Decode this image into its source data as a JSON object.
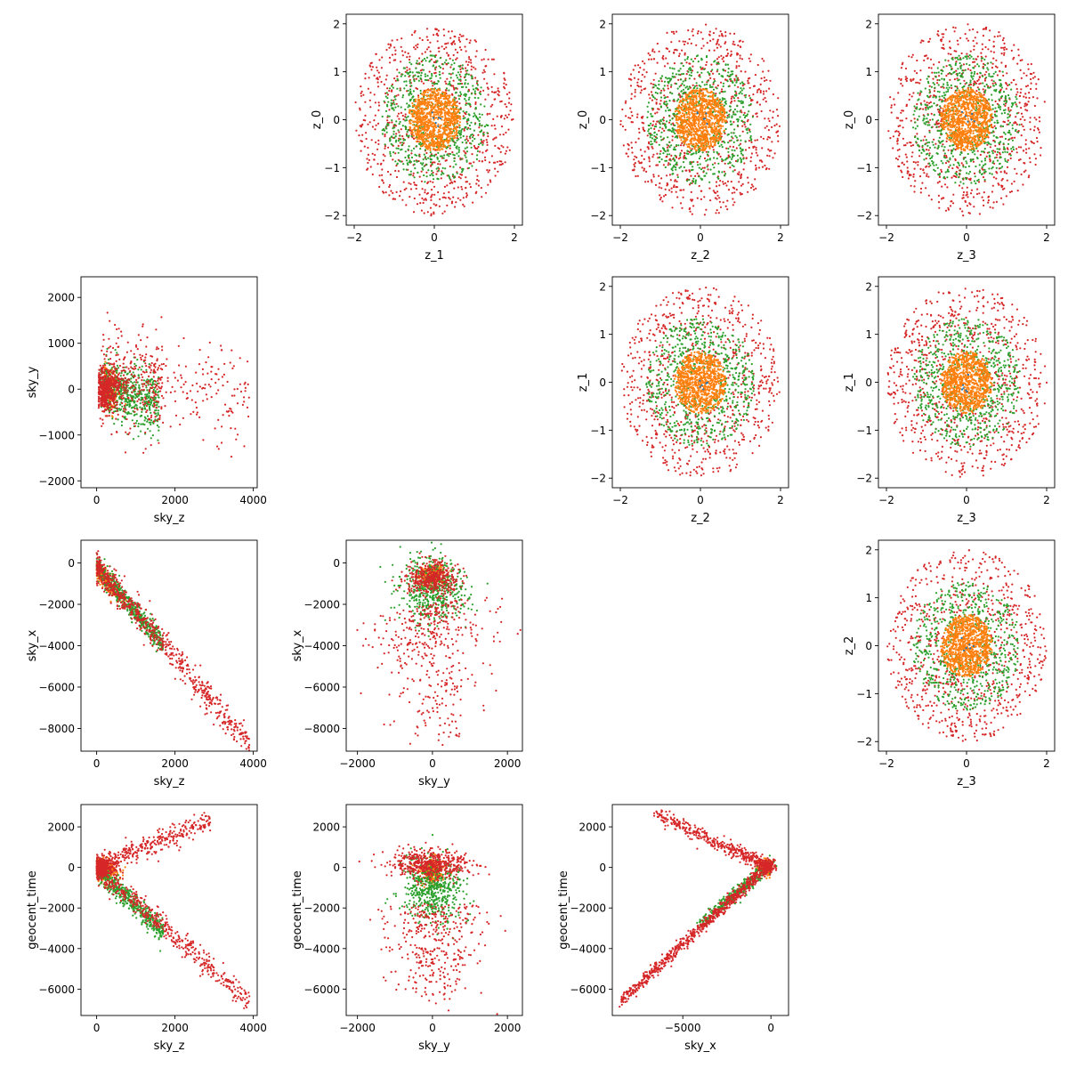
{
  "figure": {
    "background": "#ffffff"
  },
  "chart_data": [
    {
      "id": "z1-z0",
      "row": 0,
      "col": 1,
      "type": "scatter",
      "xlabel": "z_1",
      "ylabel": "z_0",
      "xlim": [
        -2.2,
        2.2
      ],
      "ylim": [
        -2.2,
        2.2
      ],
      "xticks": [
        -2,
        0,
        2
      ],
      "xtick_labels": [
        "−2",
        "0",
        "2"
      ],
      "yticks": [
        -2,
        -1,
        0,
        1,
        2
      ],
      "ytick_labels": [
        "−2",
        "−1",
        "0",
        "1",
        "2"
      ],
      "grid": false,
      "pattern": "rings"
    },
    {
      "id": "z2-z0",
      "row": 0,
      "col": 2,
      "type": "scatter",
      "xlabel": "z_2",
      "ylabel": "z_0",
      "xlim": [
        -2.2,
        2.2
      ],
      "ylim": [
        -2.2,
        2.2
      ],
      "xticks": [
        -2,
        0,
        2
      ],
      "xtick_labels": [
        "−2",
        "0",
        "2"
      ],
      "yticks": [
        -2,
        -1,
        0,
        1,
        2
      ],
      "ytick_labels": [
        "−2",
        "−1",
        "0",
        "1",
        "2"
      ],
      "grid": false,
      "pattern": "rings"
    },
    {
      "id": "z3-z0",
      "row": 0,
      "col": 3,
      "type": "scatter",
      "xlabel": "z_3",
      "ylabel": "z_0",
      "xlim": [
        -2.2,
        2.2
      ],
      "ylim": [
        -2.2,
        2.2
      ],
      "xticks": [
        -2,
        0,
        2
      ],
      "xtick_labels": [
        "−2",
        "0",
        "2"
      ],
      "yticks": [
        -2,
        -1,
        0,
        1,
        2
      ],
      "ytick_labels": [
        "−2",
        "−1",
        "0",
        "1",
        "2"
      ],
      "grid": false,
      "pattern": "rings"
    },
    {
      "id": "skyz-skyy",
      "row": 1,
      "col": 0,
      "type": "scatter",
      "xlabel": "sky_z",
      "ylabel": "sky_y",
      "xlim": [
        -400,
        4100
      ],
      "ylim": [
        -2150,
        2450
      ],
      "xticks": [
        0,
        2000,
        4000
      ],
      "xtick_labels": [
        "0",
        "2000",
        "4000"
      ],
      "yticks": [
        -2000,
        -1000,
        0,
        1000,
        2000
      ],
      "ytick_labels": [
        "−2000",
        "−1000",
        "0",
        "1000",
        "2000"
      ],
      "grid": false,
      "pattern": "skyz_skyy"
    },
    {
      "id": "z2-z1",
      "row": 1,
      "col": 2,
      "type": "scatter",
      "xlabel": "z_2",
      "ylabel": "z_1",
      "xlim": [
        -2.2,
        2.2
      ],
      "ylim": [
        -2.2,
        2.2
      ],
      "xticks": [
        -2,
        0,
        2
      ],
      "xtick_labels": [
        "−2",
        "0",
        "2"
      ],
      "yticks": [
        -2,
        -1,
        0,
        1,
        2
      ],
      "ytick_labels": [
        "−2",
        "−1",
        "0",
        "1",
        "2"
      ],
      "grid": false,
      "pattern": "rings"
    },
    {
      "id": "z3-z1",
      "row": 1,
      "col": 3,
      "type": "scatter",
      "xlabel": "z_3",
      "ylabel": "z_1",
      "xlim": [
        -2.2,
        2.2
      ],
      "ylim": [
        -2.2,
        2.2
      ],
      "xticks": [
        -2,
        0,
        2
      ],
      "xtick_labels": [
        "−2",
        "0",
        "2"
      ],
      "yticks": [
        -2,
        -1,
        0,
        1,
        2
      ],
      "ytick_labels": [
        "−2",
        "−1",
        "0",
        "1",
        "2"
      ],
      "grid": false,
      "pattern": "rings"
    },
    {
      "id": "skyz-skyx",
      "row": 2,
      "col": 0,
      "type": "scatter",
      "xlabel": "sky_z",
      "ylabel": "sky_x",
      "xlim": [
        -400,
        4100
      ],
      "ylim": [
        -9100,
        1100
      ],
      "xticks": [
        0,
        2000,
        4000
      ],
      "xtick_labels": [
        "0",
        "2000",
        "4000"
      ],
      "yticks": [
        -8000,
        -6000,
        -4000,
        -2000,
        0
      ],
      "ytick_labels": [
        "−8000",
        "−6000",
        "−4000",
        "−2000",
        "0"
      ],
      "grid": false,
      "pattern": "skyz_skyx"
    },
    {
      "id": "skyy-skyx",
      "row": 2,
      "col": 1,
      "type": "scatter",
      "xlabel": "sky_y",
      "ylabel": "sky_x",
      "xlim": [
        -2300,
        2400
      ],
      "ylim": [
        -9100,
        1100
      ],
      "xticks": [
        -2000,
        0,
        2000
      ],
      "xtick_labels": [
        "−2000",
        "0",
        "2000"
      ],
      "yticks": [
        -8000,
        -6000,
        -4000,
        -2000,
        0
      ],
      "ytick_labels": [
        "−8000",
        "−6000",
        "−4000",
        "−2000",
        "0"
      ],
      "grid": false,
      "pattern": "skyy_skyx"
    },
    {
      "id": "z3-z2",
      "row": 2,
      "col": 3,
      "type": "scatter",
      "xlabel": "z_3",
      "ylabel": "z_2",
      "xlim": [
        -2.2,
        2.2
      ],
      "ylim": [
        -2.2,
        2.2
      ],
      "xticks": [
        -2,
        0,
        2
      ],
      "xtick_labels": [
        "−2",
        "0",
        "2"
      ],
      "yticks": [
        -2,
        -1,
        0,
        1,
        2
      ],
      "ytick_labels": [
        "−2",
        "−1",
        "0",
        "1",
        "2"
      ],
      "grid": false,
      "pattern": "rings"
    },
    {
      "id": "skyz-geocent",
      "row": 3,
      "col": 0,
      "type": "scatter",
      "xlabel": "sky_z",
      "ylabel": "geocent_time",
      "xlim": [
        -400,
        4100
      ],
      "ylim": [
        -7300,
        3100
      ],
      "xticks": [
        0,
        2000,
        4000
      ],
      "xtick_labels": [
        "0",
        "2000",
        "4000"
      ],
      "yticks": [
        -6000,
        -4000,
        -2000,
        0,
        2000
      ],
      "ytick_labels": [
        "−6000",
        "−4000",
        "−2000",
        "0",
        "2000"
      ],
      "grid": false,
      "pattern": "skyz_geo"
    },
    {
      "id": "skyy-geocent",
      "row": 3,
      "col": 1,
      "type": "scatter",
      "xlabel": "sky_y",
      "ylabel": "geocent_time",
      "xlim": [
        -2300,
        2400
      ],
      "ylim": [
        -7300,
        3100
      ],
      "xticks": [
        -2000,
        0,
        2000
      ],
      "xtick_labels": [
        "−2000",
        "0",
        "2000"
      ],
      "yticks": [
        -6000,
        -4000,
        -2000,
        0,
        2000
      ],
      "ytick_labels": [
        "−6000",
        "−4000",
        "−2000",
        "0",
        "2000"
      ],
      "grid": false,
      "pattern": "skyy_geo"
    },
    {
      "id": "skyx-geocent",
      "row": 3,
      "col": 2,
      "type": "scatter",
      "xlabel": "sky_x",
      "ylabel": "geocent_time",
      "xlim": [
        -9000,
        1000
      ],
      "ylim": [
        -7300,
        3100
      ],
      "xticks": [
        -5000,
        0
      ],
      "xtick_labels": [
        "−5000",
        "0"
      ],
      "yticks": [
        -6000,
        -4000,
        -2000,
        0,
        2000
      ],
      "ytick_labels": [
        "−6000",
        "−4000",
        "−2000",
        "0",
        "2000"
      ],
      "grid": false,
      "pattern": "skyx_geo"
    }
  ],
  "series_colors": [
    "#1f77b4",
    "#ff7f0e",
    "#2ca02c",
    "#d62728"
  ]
}
